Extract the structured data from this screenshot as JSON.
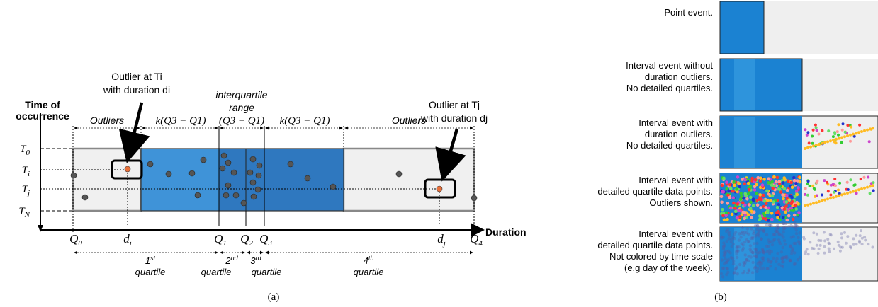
{
  "panel_a": {
    "caption": "(a)",
    "y_axis_label_line1": "Time of",
    "y_axis_label_line2": "occurrence",
    "x_axis_label": "Duration",
    "y_ticks": [
      "T0",
      "Ti",
      "Tj",
      "TN"
    ],
    "x_ticks": [
      "Q0",
      "di",
      "Q1",
      "Q2",
      "Q3",
      "dj",
      "Q4"
    ],
    "top_segments": {
      "outliers_left": "Outliers",
      "k_left": "k(Q3 − Q1)",
      "iqr_line1": "interquartile",
      "iqr_line2": "range",
      "iqr_formula": "(Q3 − Q1)",
      "k_right": "k(Q3 − Q1)",
      "outliers_right": "Outliers"
    },
    "callout_left_line1": "Outlier at Ti",
    "callout_left_line2": "with duration di",
    "callout_right_line1": "Outlier at Tj",
    "callout_right_line2": "with duration dj",
    "quartiles": [
      {
        "ord": "1",
        "sup": "st",
        "word": "quartile"
      },
      {
        "ord": "2",
        "sup": "nd",
        "word": "quartile"
      },
      {
        "ord": "3",
        "sup": "rd",
        "word": "quartile"
      },
      {
        "ord": "4",
        "sup": "th",
        "word": "quartile"
      }
    ],
    "colors": {
      "box_dark": "#2f78bf",
      "box_light": "#3f93d8",
      "outlier_fill": "#f0f0f0",
      "point": "#555555",
      "outlier_point": "#e8703a"
    }
  },
  "panel_b": {
    "caption": "(b)",
    "rows": [
      {
        "lines": [
          "Point event."
        ]
      },
      {
        "lines": [
          "Interval event without",
          "duration outliers.",
          "No detailed quartiles."
        ]
      },
      {
        "lines": [
          "Interval event with",
          "duration outliers.",
          "No detailed quartiles."
        ]
      },
      {
        "lines": [
          "Interval event with",
          "detailed quartile data points.",
          "Outliers shown."
        ]
      },
      {
        "lines": [
          "Interval event with",
          "detailed quartile data points.",
          "Not colored by time scale",
          "(e.g day of the week)."
        ]
      }
    ],
    "colors": {
      "bar": "#1b82d2",
      "bar_alt": "#2e94dc",
      "bg": "#efefef",
      "dots": [
        "#ff3333",
        "#33cc33",
        "#2233cc",
        "#ffbb22",
        "#cc44cc",
        "#ff9999",
        "#66dd66"
      ]
    }
  }
}
